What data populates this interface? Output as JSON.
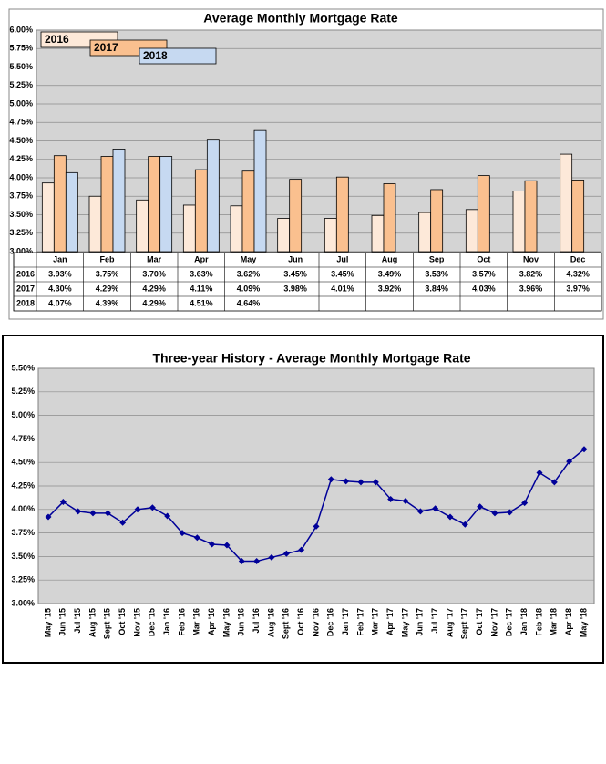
{
  "chart_data": [
    {
      "type": "bar",
      "title": "Average Monthly Mortgage Rate",
      "categories": [
        "Jan",
        "Feb",
        "Mar",
        "Apr",
        "May",
        "Jun",
        "Jul",
        "Aug",
        "Sep",
        "Oct",
        "Nov",
        "Dec"
      ],
      "series": [
        {
          "name": "2016",
          "color": "#fde9d9",
          "values": [
            3.93,
            3.75,
            3.7,
            3.63,
            3.62,
            3.45,
            3.45,
            3.49,
            3.53,
            3.57,
            3.82,
            4.32
          ],
          "value_labels": [
            "3.93%",
            "3.75%",
            "3.70%",
            "3.63%",
            "3.62%",
            "3.45%",
            "3.45%",
            "3.49%",
            "3.53%",
            "3.57%",
            "3.82%",
            "4.32%"
          ]
        },
        {
          "name": "2017",
          "color": "#fac08f",
          "values": [
            4.3,
            4.29,
            4.29,
            4.11,
            4.09,
            3.98,
            4.01,
            3.92,
            3.84,
            4.03,
            3.96,
            3.97
          ],
          "value_labels": [
            "4.30%",
            "4.29%",
            "4.29%",
            "4.11%",
            "4.09%",
            "3.98%",
            "4.01%",
            "3.92%",
            "3.84%",
            "4.03%",
            "3.96%",
            "3.97%"
          ]
        },
        {
          "name": "2018",
          "color": "#c6d9f1",
          "values": [
            4.07,
            4.39,
            4.29,
            4.51,
            4.64,
            null,
            null,
            null,
            null,
            null,
            null,
            null
          ],
          "value_labels": [
            "4.07%",
            "4.39%",
            "4.29%",
            "4.51%",
            "4.64%",
            null,
            null,
            null,
            null,
            null,
            null,
            null
          ]
        }
      ],
      "ylim": [
        3,
        6
      ],
      "yticks": [
        {
          "value": 3,
          "label": "3.00%"
        },
        {
          "value": 3.25,
          "label": "3.25%"
        },
        {
          "value": 3.5,
          "label": "3.50%"
        },
        {
          "value": 3.75,
          "label": "3.75%"
        },
        {
          "value": 4,
          "label": "4.00%"
        },
        {
          "value": 4.25,
          "label": "4.25%"
        },
        {
          "value": 4.5,
          "label": "4.50%"
        },
        {
          "value": 4.75,
          "label": "4.75%"
        },
        {
          "value": 5,
          "label": "5.00%"
        },
        {
          "value": 5.25,
          "label": "5.25%"
        },
        {
          "value": 5.5,
          "label": "5.50%"
        },
        {
          "value": 5.75,
          "label": "5.75%"
        },
        {
          "value": 6,
          "label": "6.00%"
        }
      ],
      "grid": true,
      "legend": "top-left"
    },
    {
      "type": "line",
      "title": "Three-year History - Average Monthly Mortgage Rate",
      "categories": [
        "May '15",
        "Jun '15",
        "Jul '15",
        "Aug '15",
        "Sept '15",
        "Oct '15",
        "Nov '15",
        "Dec '15",
        "Jan '16",
        "Feb '16",
        "Mar '16",
        "Apr '16",
        "May '16",
        "Jun '16",
        "Jul '16",
        "Aug '16",
        "Sept '16",
        "Oct '16",
        "Nov '16",
        "Dec '16",
        "Jan '17",
        "Feb '17",
        "Mar '17",
        "Apr '17",
        "May '17",
        "Jun '17",
        "Jul '17",
        "Aug '17",
        "Sept '17",
        "Oct '17",
        "Nov '17",
        "Dec '17",
        "Jan '18",
        "Feb '18",
        "Mar '18",
        "Apr '18",
        "May '18"
      ],
      "values": [
        3.92,
        4.08,
        3.98,
        3.96,
        3.96,
        3.86,
        4.0,
        4.02,
        3.93,
        3.75,
        3.7,
        3.63,
        3.62,
        3.45,
        3.45,
        3.49,
        3.53,
        3.57,
        3.82,
        4.32,
        4.3,
        4.29,
        4.29,
        4.11,
        4.09,
        3.98,
        4.01,
        3.92,
        3.84,
        4.03,
        3.96,
        3.97,
        4.07,
        4.39,
        4.29,
        4.51,
        4.64
      ],
      "color": "#000099",
      "ylim": [
        3,
        5.5
      ],
      "yticks": [
        {
          "value": 3,
          "label": "3.00%"
        },
        {
          "value": 3.25,
          "label": "3.25%"
        },
        {
          "value": 3.5,
          "label": "3.50%"
        },
        {
          "value": 3.75,
          "label": "3.75%"
        },
        {
          "value": 4,
          "label": "4.00%"
        },
        {
          "value": 4.25,
          "label": "4.25%"
        },
        {
          "value": 4.5,
          "label": "4.50%"
        },
        {
          "value": 4.75,
          "label": "4.75%"
        },
        {
          "value": 5,
          "label": "5.00%"
        },
        {
          "value": 5.25,
          "label": "5.25%"
        },
        {
          "value": 5.5,
          "label": "5.50%"
        }
      ],
      "grid": true
    }
  ]
}
